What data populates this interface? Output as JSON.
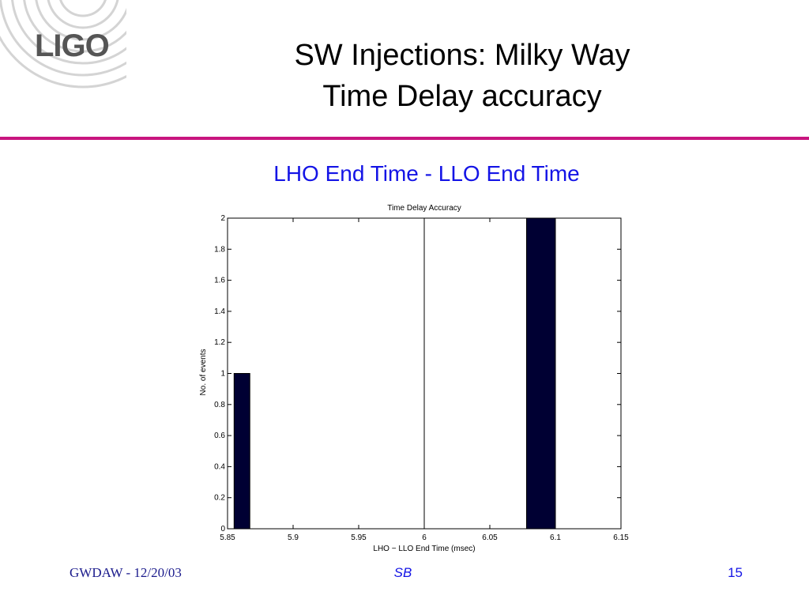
{
  "logo": {
    "text": "LIGO"
  },
  "slide": {
    "title_line1": "SW Injections: Milky Way",
    "title_line2": "Time Delay accuracy",
    "subtitle": "LHO End Time  - LLO End Time"
  },
  "colors": {
    "title_rule": "#c8157f",
    "subtitle": "#1414e6",
    "bar_fill": "#000033"
  },
  "chart_data": {
    "type": "bar",
    "title": "Time Delay Accuracy",
    "xlabel": "LHO − LLO End Time (msec)",
    "ylabel": "No. of events",
    "xlim": [
      5.85,
      6.15
    ],
    "ylim": [
      0,
      2
    ],
    "xticks": [
      5.85,
      5.9,
      5.95,
      6,
      6.05,
      6.1,
      6.15
    ],
    "xtick_labels": [
      "5.85",
      "5.9",
      "5.95",
      "6",
      "6.05",
      "6.1",
      "6.15"
    ],
    "yticks": [
      0,
      0.2,
      0.4,
      0.6,
      0.8,
      1,
      1.2,
      1.4,
      1.6,
      1.8,
      2
    ],
    "ytick_labels": [
      "0",
      "0.2",
      "0.4",
      "0.6",
      "0.8",
      "1",
      "1.2",
      "1.4",
      "1.6",
      "1.8",
      "2"
    ],
    "bars": [
      {
        "x0": 5.855,
        "x1": 5.867,
        "value": 1
      },
      {
        "x0": 6.078,
        "x1": 6.1,
        "value": 2
      }
    ],
    "reference_line_x": 6,
    "grid": false
  },
  "footer": {
    "left": "GWDAW - 12/20/03",
    "center": "SB",
    "right": "15"
  }
}
